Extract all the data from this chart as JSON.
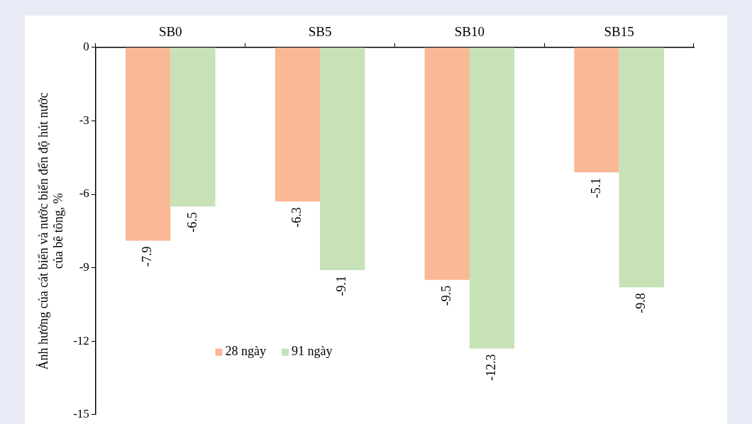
{
  "chart_data": {
    "type": "bar",
    "ylabel": "Ảnh hưởng của cát biển và nước biển đến độ hút nước của bê tông, %",
    "categories": [
      "SB0",
      "SB5",
      "SB10",
      "SB15"
    ],
    "series": [
      {
        "name": "28 ngày",
        "color": "#f9b896",
        "values": [
          -7.9,
          -6.3,
          -9.5,
          -5.1
        ]
      },
      {
        "name": "91 ngày",
        "color": "#c6e2b6",
        "values": [
          -6.5,
          -9.1,
          -12.3,
          -9.8
        ]
      }
    ],
    "ylim": [
      -15,
      0
    ],
    "yticks": [
      0,
      -3,
      -6,
      -9,
      -12,
      -15
    ],
    "grid": false,
    "legend": "bottom",
    "data_labels": true
  }
}
